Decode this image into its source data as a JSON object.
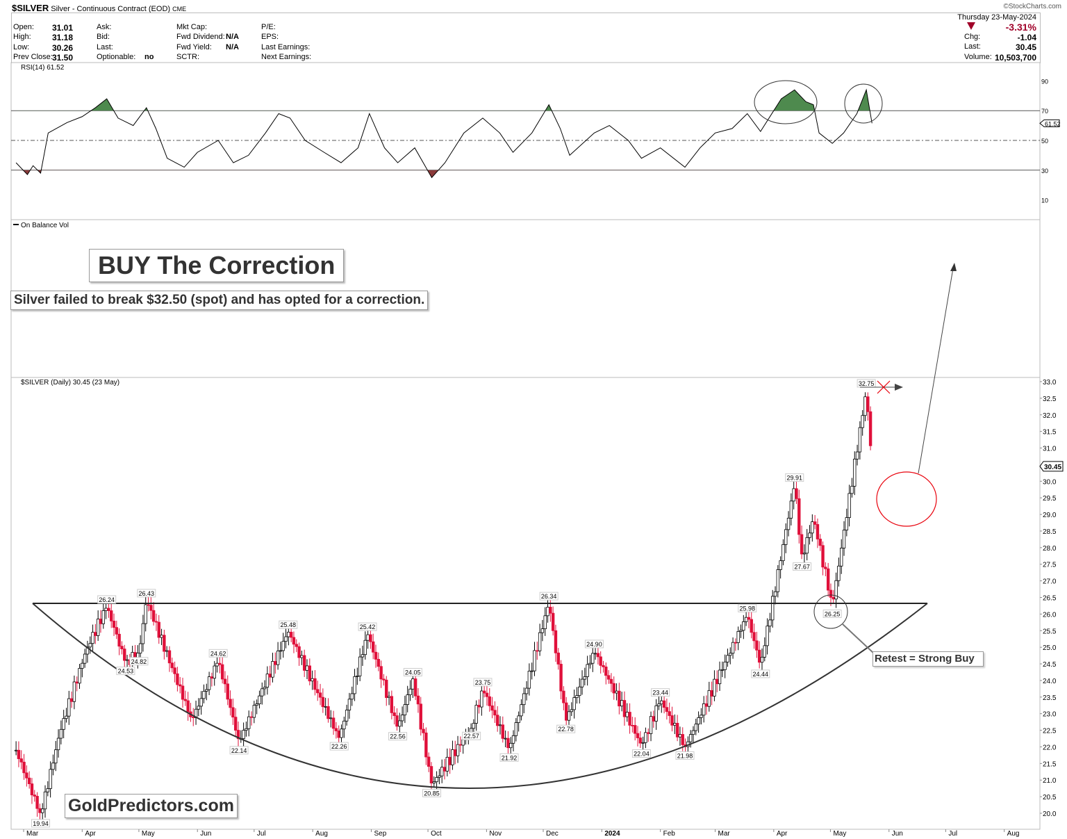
{
  "header": {
    "symbol": "$SILVER",
    "description": "Silver - Continuous Contract (EOD)",
    "exchange": "CME",
    "copyright": "©StockCharts.com",
    "date": "Thursday  23-May-2024",
    "pct_change": "-3.31%",
    "fields": [
      {
        "label": "Open:",
        "value": "31.01"
      },
      {
        "label": "High:",
        "value": "31.18"
      },
      {
        "label": "Low:",
        "value": "30.26"
      },
      {
        "label": "Prev Close:",
        "value": "31.50"
      }
    ],
    "fields2": [
      {
        "label": "Ask:",
        "value": ""
      },
      {
        "label": "Bid:",
        "value": ""
      },
      {
        "label": "Last:",
        "value": ""
      },
      {
        "label": "Optionable:",
        "value": "no"
      }
    ],
    "fields3": [
      {
        "label": "Mkt Cap:",
        "value": ""
      },
      {
        "label": "Fwd Dividend:",
        "value": "N/A"
      },
      {
        "label": "Fwd Yield:",
        "value": "N/A"
      },
      {
        "label": "SCTR:",
        "value": ""
      }
    ],
    "fields4": [
      {
        "label": "P/E:"
      },
      {
        "label": "EPS:"
      },
      {
        "label": "Last Earnings:"
      },
      {
        "label": "Next Earnings:"
      }
    ],
    "right": [
      {
        "label": "Chg:",
        "value": "-1.04"
      },
      {
        "label": "Last:",
        "value": "30.45"
      },
      {
        "label": "Volume:",
        "value": "10,503,700"
      }
    ],
    "down_color": "#a00028"
  },
  "annotations": {
    "title": "BUY The Correction",
    "subtitle": "Silver failed to break $32.50 (spot) and has opted for a correction.",
    "retest": "Retest = Strong Buy",
    "watermark": "GoldPredictors.com"
  },
  "chart_data": [
    {
      "type": "line",
      "panel": "RSI",
      "label": "RSI(14) 61.52",
      "last_value": "61.52",
      "ylim": [
        0,
        100
      ],
      "yticks": [
        "90",
        "70",
        "50",
        "30",
        "10"
      ],
      "overbought": 70,
      "oversold": 30,
      "midline": 50,
      "overbought_color": "#4e8a4e",
      "oversold_color": "#8a3a3a",
      "points": [
        [
          "2023-02-25",
          35
        ],
        [
          "2023-03-03",
          27
        ],
        [
          "2023-03-06",
          33
        ],
        [
          "2023-03-10",
          28
        ],
        [
          "2023-03-14",
          55
        ],
        [
          "2023-03-24",
          62
        ],
        [
          "2023-04-01",
          66
        ],
        [
          "2023-04-08",
          72
        ],
        [
          "2023-04-14",
          78
        ],
        [
          "2023-04-20",
          65
        ],
        [
          "2023-04-28",
          60
        ],
        [
          "2023-05-05",
          72
        ],
        [
          "2023-05-10",
          58
        ],
        [
          "2023-05-16",
          38
        ],
        [
          "2023-05-25",
          32
        ],
        [
          "2023-06-01",
          42
        ],
        [
          "2023-06-12",
          50
        ],
        [
          "2023-06-20",
          35
        ],
        [
          "2023-06-28",
          40
        ],
        [
          "2023-07-07",
          55
        ],
        [
          "2023-07-14",
          68
        ],
        [
          "2023-07-20",
          65
        ],
        [
          "2023-07-28",
          50
        ],
        [
          "2023-08-07",
          42
        ],
        [
          "2023-08-16",
          35
        ],
        [
          "2023-08-25",
          45
        ],
        [
          "2023-08-31",
          68
        ],
        [
          "2023-09-08",
          45
        ],
        [
          "2023-09-15",
          35
        ],
        [
          "2023-09-24",
          45
        ],
        [
          "2023-10-03",
          25
        ],
        [
          "2023-10-10",
          35
        ],
        [
          "2023-10-20",
          55
        ],
        [
          "2023-10-30",
          65
        ],
        [
          "2023-11-08",
          55
        ],
        [
          "2023-11-15",
          42
        ],
        [
          "2023-11-25",
          55
        ],
        [
          "2023-12-04",
          74
        ],
        [
          "2023-12-10",
          58
        ],
        [
          "2023-12-15",
          40
        ],
        [
          "2023-12-28",
          55
        ],
        [
          "2024-01-05",
          60
        ],
        [
          "2024-01-15",
          50
        ],
        [
          "2024-01-22",
          38
        ],
        [
          "2024-02-01",
          45
        ],
        [
          "2024-02-14",
          32
        ],
        [
          "2024-02-22",
          45
        ],
        [
          "2024-03-01",
          55
        ],
        [
          "2024-03-10",
          58
        ],
        [
          "2024-03-18",
          68
        ],
        [
          "2024-03-25",
          56
        ],
        [
          "2024-04-01",
          70
        ],
        [
          "2024-04-05",
          78
        ],
        [
          "2024-04-12",
          84
        ],
        [
          "2024-04-18",
          76
        ],
        [
          "2024-04-22",
          74
        ],
        [
          "2024-04-25",
          55
        ],
        [
          "2024-05-02",
          48
        ],
        [
          "2024-05-08",
          55
        ],
        [
          "2024-05-15",
          68
        ],
        [
          "2024-05-20",
          84
        ],
        [
          "2024-05-23",
          61.52
        ]
      ]
    },
    {
      "type": "line",
      "panel": "On Balance Vol",
      "label": "On Balance Vol",
      "points": []
    },
    {
      "type": "candlestick",
      "label": "$SILVER (Daily) 30.45 (23 May)",
      "last_value": "30.45",
      "ylim": [
        19.7,
        33.1
      ],
      "yticks": [
        "33.0",
        "32.5",
        "32.0",
        "31.5",
        "31.0",
        "30.0",
        "29.5",
        "29.0",
        "28.5",
        "28.0",
        "27.5",
        "27.0",
        "26.5",
        "26.0",
        "25.5",
        "25.0",
        "24.5",
        "24.0",
        "23.5",
        "23.0",
        "22.5",
        "22.0",
        "21.5",
        "21.0",
        "20.5",
        "20.0"
      ],
      "xticks": [
        "Mar",
        "Apr",
        "May",
        "Jun",
        "Jul",
        "Aug",
        "Sep",
        "Oct",
        "Nov",
        "Dec",
        "2024",
        "Feb",
        "Mar",
        "Apr",
        "May",
        "Jun",
        "Jul",
        "Aug"
      ],
      "xtick_dates": [
        "2023-03-01",
        "2023-04-01",
        "2023-05-01",
        "2023-06-01",
        "2023-07-01",
        "2023-08-01",
        "2023-09-01",
        "2023-10-01",
        "2023-11-01",
        "2023-12-01",
        "2024-01-01",
        "2024-02-01",
        "2024-03-01",
        "2024-04-01",
        "2024-05-01",
        "2024-06-01",
        "2024-07-01",
        "2024-08-01"
      ],
      "up_color": "#ffffff",
      "down_color": "#e0103a",
      "pivots": [
        [
          "2023-02-25",
          21.9
        ],
        [
          "2023-03-10",
          19.94
        ],
        [
          "2023-03-20",
          22.4
        ],
        [
          "2023-04-03",
          24.9
        ],
        [
          "2023-04-14",
          26.24
        ],
        [
          "2023-04-24",
          24.53
        ],
        [
          "2023-05-01",
          24.82
        ],
        [
          "2023-05-05",
          26.43
        ],
        [
          "2023-05-29",
          22.8
        ],
        [
          "2023-06-12",
          24.62
        ],
        [
          "2023-06-23",
          22.14
        ],
        [
          "2023-07-19",
          25.48
        ],
        [
          "2023-08-15",
          22.26
        ],
        [
          "2023-08-30",
          25.42
        ],
        [
          "2023-09-15",
          22.56
        ],
        [
          "2023-09-23",
          24.05
        ],
        [
          "2023-10-03",
          20.85
        ],
        [
          "2023-10-24",
          22.57
        ],
        [
          "2023-10-30",
          23.75
        ],
        [
          "2023-11-13",
          21.92
        ],
        [
          "2023-12-04",
          26.34
        ],
        [
          "2023-12-13",
          22.78
        ],
        [
          "2023-12-28",
          24.9
        ],
        [
          "2024-01-22",
          22.04
        ],
        [
          "2024-02-01",
          23.44
        ],
        [
          "2024-02-14",
          21.98
        ],
        [
          "2024-03-18",
          25.98
        ],
        [
          "2024-03-25",
          24.44
        ],
        [
          "2024-04-12",
          29.91
        ],
        [
          "2024-04-16",
          27.67
        ],
        [
          "2024-04-22",
          28.9
        ],
        [
          "2024-05-02",
          26.25
        ],
        [
          "2024-05-20",
          32.75
        ],
        [
          "2024-05-23",
          30.45
        ]
      ],
      "labels": [
        [
          "2023-03-10",
          "19.94",
          "below"
        ],
        [
          "2023-04-14",
          "26.24",
          "above"
        ],
        [
          "2023-04-24",
          "24.53",
          "below"
        ],
        [
          "2023-05-01",
          "24.82",
          "below"
        ],
        [
          "2023-05-05",
          "26.43",
          "above"
        ],
        [
          "2023-06-12",
          "24.62",
          "above"
        ],
        [
          "2023-06-23",
          "22.14",
          "below"
        ],
        [
          "2023-07-19",
          "25.48",
          "above"
        ],
        [
          "2023-08-15",
          "22.26",
          "below"
        ],
        [
          "2023-08-30",
          "25.42",
          "above"
        ],
        [
          "2023-09-15",
          "22.56",
          "below"
        ],
        [
          "2023-09-23",
          "24.05",
          "above"
        ],
        [
          "2023-10-03",
          "20.85",
          "below"
        ],
        [
          "2023-10-24",
          "22.57",
          "below"
        ],
        [
          "2023-10-30",
          "23.75",
          "above"
        ],
        [
          "2023-11-13",
          "21.92",
          "below"
        ],
        [
          "2023-12-04",
          "26.34",
          "above"
        ],
        [
          "2023-12-13",
          "22.78",
          "below"
        ],
        [
          "2023-12-28",
          "24.90",
          "above"
        ],
        [
          "2024-01-22",
          "22.04",
          "below"
        ],
        [
          "2024-02-01",
          "23.44",
          "above"
        ],
        [
          "2024-02-14",
          "21.98",
          "below"
        ],
        [
          "2024-03-18",
          "25.98",
          "above"
        ],
        [
          "2024-03-25",
          "24.44",
          "below"
        ],
        [
          "2024-04-12",
          "29.91",
          "above"
        ],
        [
          "2024-04-16",
          "27.67",
          "below"
        ],
        [
          "2024-05-02",
          "26.25",
          "below"
        ],
        [
          "2024-05-20",
          "32.75",
          "above"
        ]
      ],
      "neckline": 26.34
    }
  ]
}
